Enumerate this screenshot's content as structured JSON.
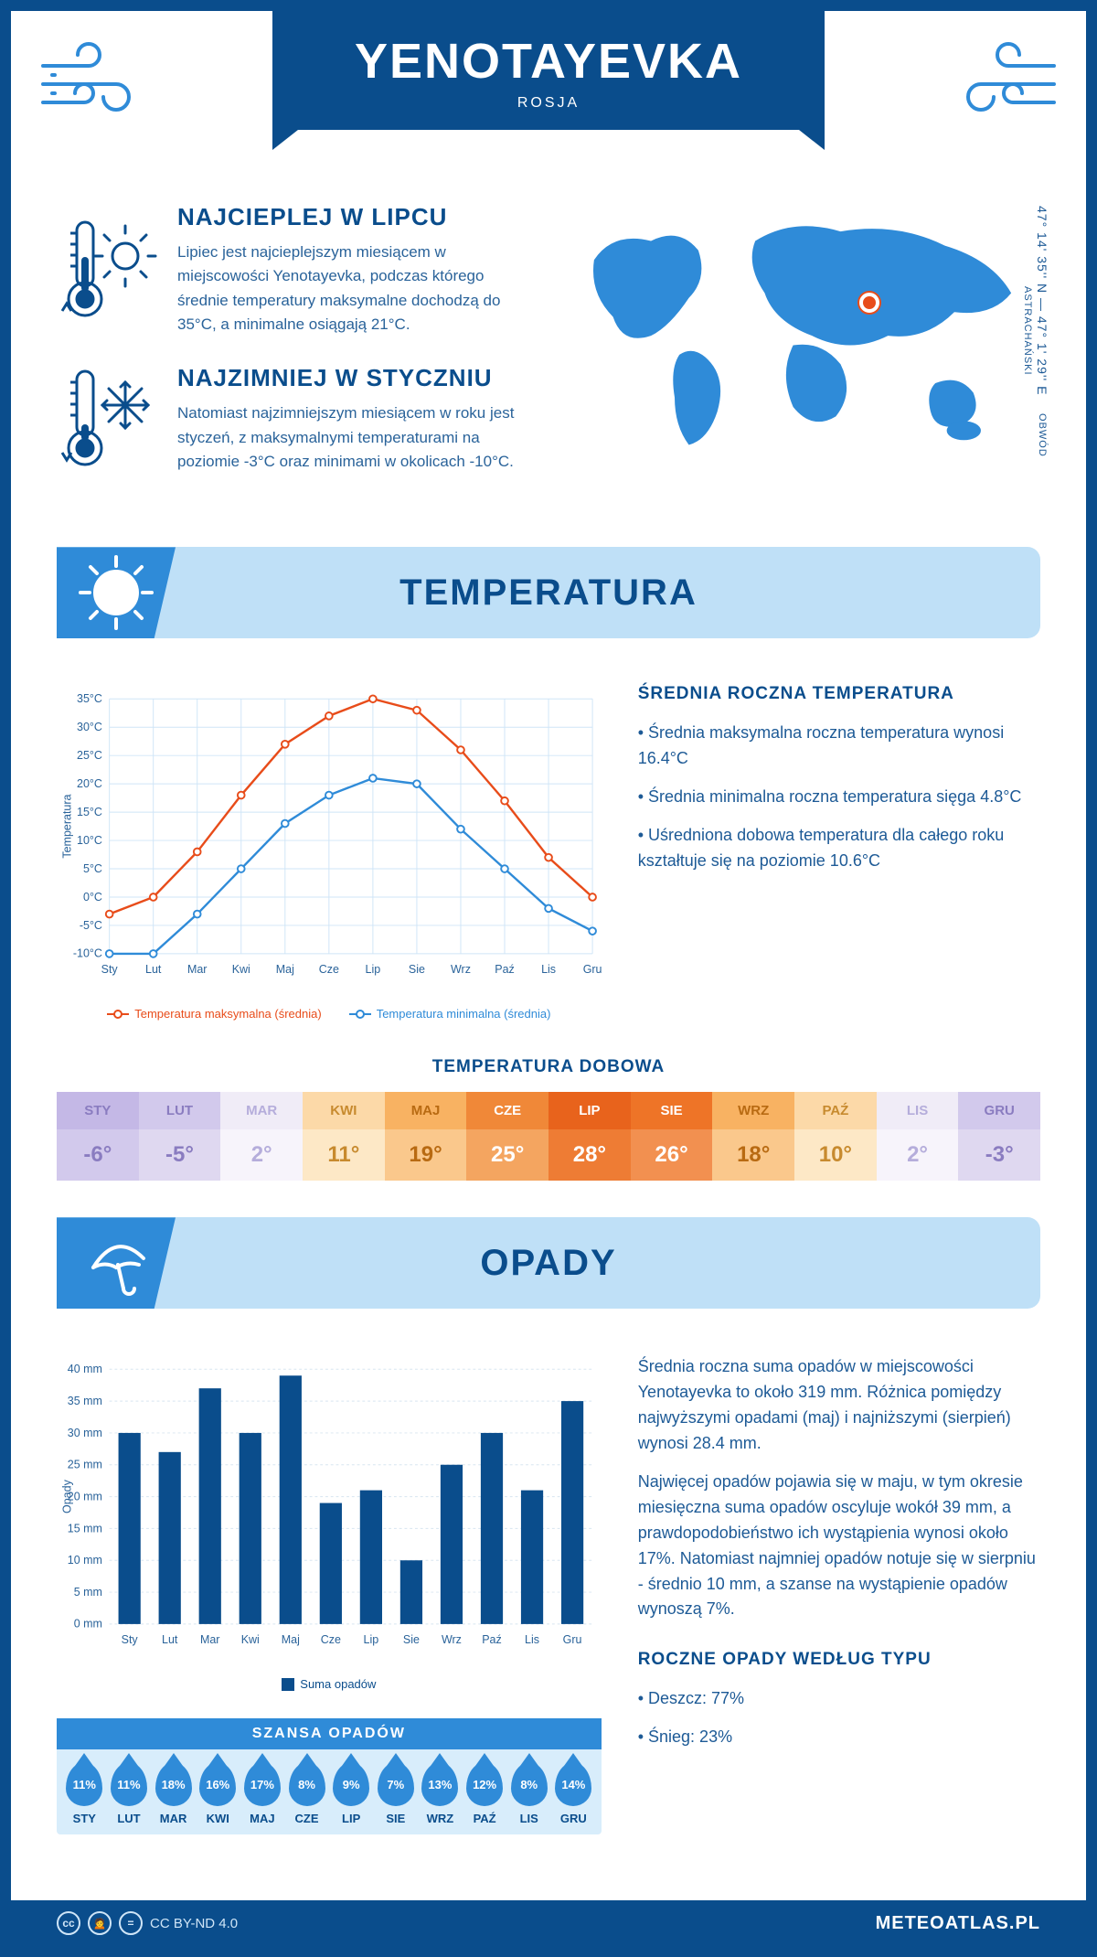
{
  "header": {
    "city": "YENOTAYEVKA",
    "country": "ROSJA",
    "coords_line1": "47° 14' 35'' N — 47° 1' 29'' E",
    "region": "OBWÓD ASTRACHAŃSKI"
  },
  "facts": {
    "hot": {
      "title": "NAJCIEPLEJ W LIPCU",
      "text": "Lipiec jest najcieplejszym miesiącem w miejscowości Yenotayevka, podczas którego średnie temperatury maksymalne dochodzą do 35°C, a minimalne osiągają 21°C."
    },
    "cold": {
      "title": "NAJZIMNIEJ W STYCZNIU",
      "text": "Natomiast najzimniejszym miesiącem w roku jest styczeń, z maksymalnymi temperaturami na poziomie -3°C oraz minimami w okolicach -10°C."
    }
  },
  "temp_section": {
    "title": "TEMPERATURA",
    "daily_title": "TEMPERATURA DOBOWA",
    "summary_title": "ŚREDNIA ROCZNA TEMPERATURA",
    "bullets": [
      "Średnia maksymalna roczna temperatura wynosi 16.4°C",
      "Średnia minimalna roczna temperatura sięga 4.8°C",
      "Uśredniona dobowa temperatura dla całego roku kształtuje się na poziomie 10.6°C"
    ],
    "chart": {
      "months": [
        "Sty",
        "Lut",
        "Mar",
        "Kwi",
        "Maj",
        "Cze",
        "Lip",
        "Sie",
        "Wrz",
        "Paź",
        "Lis",
        "Gru"
      ],
      "ylim": [
        -10,
        35
      ],
      "ytick_step": 5,
      "ylabel": "Temperatura",
      "series": [
        {
          "name": "Temperatura maksymalna (średnia)",
          "color": "#e84c1a",
          "values": [
            -3,
            0,
            8,
            18,
            27,
            32,
            35,
            33,
            26,
            17,
            7,
            0
          ]
        },
        {
          "name": "Temperatura minimalna (średnia)",
          "color": "#2f8bd8",
          "values": [
            -10,
            -10,
            -3,
            5,
            13,
            18,
            21,
            20,
            12,
            5,
            -2,
            -6
          ]
        }
      ],
      "grid_color": "#cfe5f7",
      "line_width": 2.5,
      "marker_size": 4
    },
    "daily": {
      "months": [
        "STY",
        "LUT",
        "MAR",
        "KWI",
        "MAJ",
        "CZE",
        "LIP",
        "SIE",
        "WRZ",
        "PAŹ",
        "LIS",
        "GRU"
      ],
      "values": [
        "-6°",
        "-5°",
        "2°",
        "11°",
        "19°",
        "25°",
        "28°",
        "26°",
        "18°",
        "10°",
        "2°",
        "-3°"
      ],
      "bg_colors": [
        "#c4b8e6",
        "#d2c9ec",
        "#f0ecf7",
        "#fcd9a8",
        "#f8b262",
        "#f08838",
        "#e8631c",
        "#ee7427",
        "#f8b262",
        "#fcd9a8",
        "#f0ecf7",
        "#d2c9ec"
      ],
      "text_colors": [
        "#8a7cc0",
        "#8a7cc0",
        "#b5addb",
        "#c78a2e",
        "#b86a12",
        "#fff",
        "#fff",
        "#fff",
        "#b86a12",
        "#c78a2e",
        "#b5addb",
        "#8a7cc0"
      ],
      "val_bg": [
        "#d2c9ec",
        "#dfd8f0",
        "#f7f4fb",
        "#fde8c6",
        "#fac88c",
        "#f4a560",
        "#ee7c34",
        "#f29050",
        "#fac88c",
        "#fde8c6",
        "#f7f4fb",
        "#dfd8f0"
      ]
    }
  },
  "precip_section": {
    "title": "OPADY",
    "chart": {
      "months": [
        "Sty",
        "Lut",
        "Mar",
        "Kwi",
        "Maj",
        "Cze",
        "Lip",
        "Sie",
        "Wrz",
        "Paź",
        "Lis",
        "Gru"
      ],
      "values": [
        30,
        27,
        37,
        30,
        39,
        19,
        21,
        10,
        25,
        30,
        21,
        35
      ],
      "ylim": [
        0,
        40
      ],
      "ytick_step": 5,
      "ylabel": "Opady",
      "unit": "mm",
      "bar_color": "#0a4d8c",
      "grid_color": "#d8e5f0",
      "bar_width": 0.55,
      "legend": "Suma opadów"
    },
    "text1": "Średnia roczna suma opadów w miejscowości Yenotayevka to około 319 mm. Różnica pomiędzy najwyższymi opadami (maj) i najniższymi (sierpień) wynosi 28.4 mm.",
    "text2": "Najwięcej opadów pojawia się w maju, w tym okresie miesięczna suma opadów oscyluje wokół 39 mm, a prawdopodobieństwo ich wystąpienia wynosi około 17%. Natomiast najmniej opadów notuje się w sierpniu - średnio 10 mm, a szanse na wystąpienie opadów wynoszą 7%.",
    "chance": {
      "title": "SZANSA OPADÓW",
      "months": [
        "STY",
        "LUT",
        "MAR",
        "KWI",
        "MAJ",
        "CZE",
        "LIP",
        "SIE",
        "WRZ",
        "PAŹ",
        "LIS",
        "GRU"
      ],
      "values": [
        "11%",
        "11%",
        "18%",
        "16%",
        "17%",
        "8%",
        "9%",
        "7%",
        "13%",
        "12%",
        "8%",
        "14%"
      ]
    },
    "by_type": {
      "title": "ROCZNE OPADY WEDŁUG TYPU",
      "items": [
        "Deszcz: 77%",
        "Śnieg: 23%"
      ]
    }
  },
  "footer": {
    "license": "CC BY-ND 4.0",
    "brand": "METEOATLAS.PL"
  },
  "colors": {
    "primary": "#0a4d8c",
    "accent": "#2f8bd8",
    "banner_bg": "#bfe0f7",
    "orange": "#e84c1a"
  }
}
